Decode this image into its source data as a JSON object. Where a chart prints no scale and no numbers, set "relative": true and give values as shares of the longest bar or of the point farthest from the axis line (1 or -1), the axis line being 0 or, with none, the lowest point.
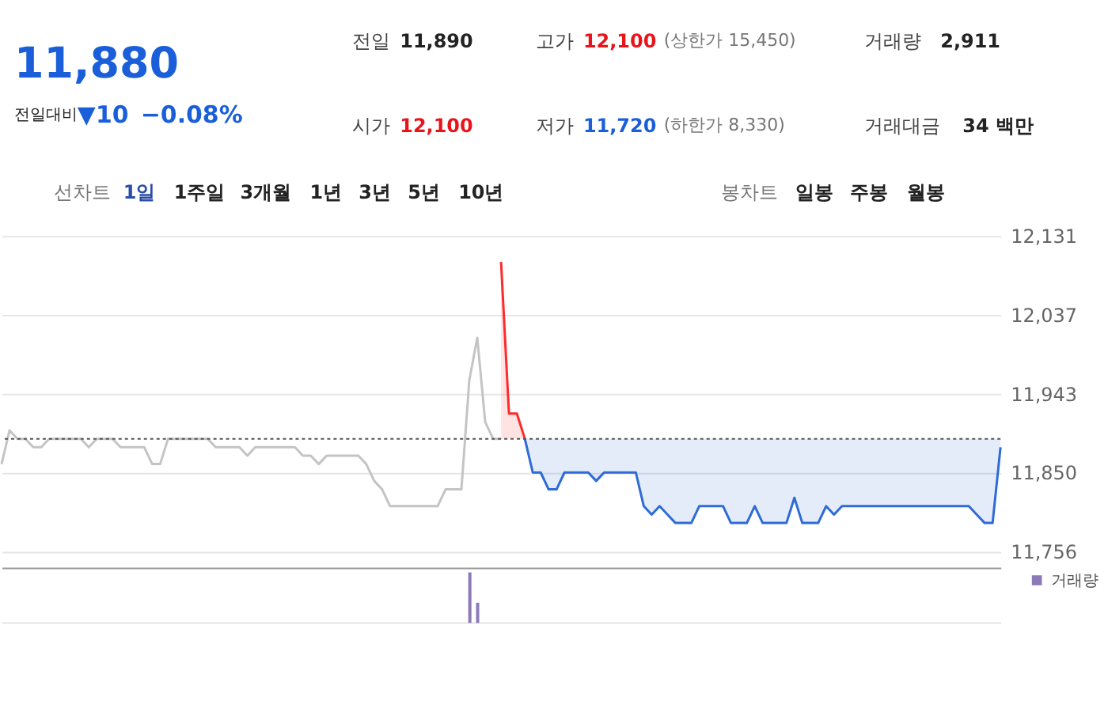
{
  "chart_data": [
    {
      "type": "other",
      "annotations": [
        "11,880",
        "전일대비",
        "▼10",
        "−0.08%",
        "전일",
        "11,890",
        "고가",
        "12,100",
        "(상한가 15,450)",
        "거래량",
        "2,911",
        "시가",
        "12,100",
        "저가",
        "11,720",
        "(하한가 8,330)",
        "거래대금",
        "34 백만",
        "선차트",
        "1일",
        "1주일",
        "3개월",
        "1년",
        "3년",
        "5년",
        "10년",
        "봉차트",
        "일봉",
        "주봉",
        "월봉"
      ]
    },
    {
      "type": "line",
      "categories": [
        null,
        null,
        null,
        null,
        null,
        null,
        null,
        null,
        null,
        null,
        null,
        null,
        null,
        null,
        null,
        null,
        null,
        null,
        null,
        null,
        null,
        null,
        null,
        null,
        null,
        null,
        null,
        null,
        null,
        null,
        null,
        null,
        null,
        null,
        null,
        null,
        null,
        null,
        null,
        null,
        null,
        null,
        null,
        null,
        null,
        null,
        null,
        null,
        null,
        null,
        null,
        null,
        null,
        null,
        null,
        null,
        null,
        null,
        null,
        null,
        null,
        null,
        null,
        null,
        null,
        null,
        null,
        null,
        null,
        null,
        null,
        null,
        null,
        null,
        null,
        null,
        null,
        null,
        null,
        null,
        null,
        null,
        null,
        null,
        null,
        null,
        null,
        null,
        null,
        null,
        null,
        null,
        null,
        null,
        null,
        null,
        null,
        null,
        null,
        null,
        null,
        null,
        null,
        null,
        null,
        null,
        null,
        null,
        null,
        null,
        null,
        null,
        null,
        null,
        null,
        null,
        null,
        null,
        null,
        null,
        null,
        null,
        null,
        null,
        null,
        null,
        null
      ],
      "series": [
        {
          "color": "#c4c4c4",
          "values": [
            11860,
            11900,
            11890,
            11890,
            11880,
            11880,
            11890,
            11890,
            11890,
            11890,
            11890,
            11880,
            11890,
            11890,
            11890,
            11880,
            11880,
            11880,
            11880,
            11860,
            11860,
            11890,
            11890,
            11890,
            11890,
            11890,
            11890,
            11880,
            11880,
            11880,
            11880,
            11870,
            11880,
            11880,
            11880,
            11880,
            11880,
            11880,
            11870,
            11870,
            11860,
            11870,
            11870,
            11870,
            11870,
            11870,
            11860,
            11840,
            11830,
            11810,
            11810,
            11810,
            11810,
            11810,
            11810,
            11810,
            11830,
            11830,
            11830,
            11960,
            12010,
            11910,
            11890,
            11890,
            null,
            null,
            null,
            null,
            null,
            null,
            null,
            null,
            null,
            null,
            null,
            null,
            null,
            null,
            null,
            null,
            null,
            null,
            null,
            null,
            null,
            null,
            null,
            null,
            null,
            null,
            null,
            null,
            null,
            null,
            null,
            null,
            null,
            null,
            null,
            null,
            null,
            null,
            null,
            null,
            null,
            null,
            null,
            null,
            null,
            null,
            null,
            null,
            null,
            null,
            null,
            null,
            null,
            null,
            null,
            null,
            null,
            null,
            null,
            null,
            null,
            null,
            null
          ]
        },
        {
          "color": "#ff2a2a",
          "values": [
            null,
            null,
            null,
            null,
            null,
            null,
            null,
            null,
            null,
            null,
            null,
            null,
            null,
            null,
            null,
            null,
            null,
            null,
            null,
            null,
            null,
            null,
            null,
            null,
            null,
            null,
            null,
            null,
            null,
            null,
            null,
            null,
            null,
            null,
            null,
            null,
            null,
            null,
            null,
            null,
            null,
            null,
            null,
            null,
            null,
            null,
            null,
            null,
            null,
            null,
            null,
            null,
            null,
            null,
            null,
            null,
            null,
            null,
            null,
            null,
            null,
            null,
            null,
            12100,
            11920,
            11920,
            11890,
            null,
            null,
            null,
            null,
            null,
            null,
            null,
            null,
            null,
            null,
            null,
            null,
            null,
            null,
            null,
            null,
            null,
            null,
            null,
            null,
            null,
            null,
            null,
            null,
            null,
            null,
            null,
            null,
            null,
            null,
            null,
            null,
            null,
            null,
            null,
            null,
            null,
            null,
            null,
            null,
            null,
            null,
            null,
            null,
            null,
            null,
            null,
            null,
            null,
            null,
            null,
            null,
            null,
            null,
            null,
            null,
            null,
            null,
            null,
            null
          ],
          "lower": [
            null,
            null,
            null,
            null,
            null,
            null,
            null,
            null,
            null,
            null,
            null,
            null,
            null,
            null,
            null,
            null,
            null,
            null,
            null,
            null,
            null,
            null,
            null,
            null,
            null,
            null,
            null,
            null,
            null,
            null,
            null,
            null,
            null,
            null,
            null,
            null,
            null,
            null,
            null,
            null,
            null,
            null,
            null,
            null,
            null,
            null,
            null,
            null,
            null,
            null,
            null,
            null,
            null,
            null,
            null,
            null,
            null,
            null,
            null,
            null,
            null,
            null,
            null,
            11890,
            11890,
            11890,
            11890,
            null,
            null,
            null,
            null,
            null,
            null,
            null,
            null,
            null,
            null,
            null,
            null,
            null,
            null,
            null,
            null,
            null,
            null,
            null,
            null,
            null,
            null,
            null,
            null,
            null,
            null,
            null,
            null,
            null,
            null,
            null,
            null,
            null,
            null,
            null,
            null,
            null,
            null,
            null,
            null,
            null,
            null,
            null,
            null,
            null,
            null,
            null,
            null,
            null,
            null,
            null,
            null,
            null,
            null,
            null,
            null,
            null,
            null,
            null,
            null
          ],
          "upper": [
            null,
            null,
            null,
            null,
            null,
            null,
            null,
            null,
            null,
            null,
            null,
            null,
            null,
            null,
            null,
            null,
            null,
            null,
            null,
            null,
            null,
            null,
            null,
            null,
            null,
            null,
            null,
            null,
            null,
            null,
            null,
            null,
            null,
            null,
            null,
            null,
            null,
            null,
            null,
            null,
            null,
            null,
            null,
            null,
            null,
            null,
            null,
            null,
            null,
            null,
            null,
            null,
            null,
            null,
            null,
            null,
            null,
            null,
            null,
            null,
            null,
            null,
            null,
            12100,
            11920,
            11920,
            11890,
            null,
            null,
            null,
            null,
            null,
            null,
            null,
            null,
            null,
            null,
            null,
            null,
            null,
            null,
            null,
            null,
            null,
            null,
            null,
            null,
            null,
            null,
            null,
            null,
            null,
            null,
            null,
            null,
            null,
            null,
            null,
            null,
            null,
            null,
            null,
            null,
            null,
            null,
            null,
            null,
            null,
            null,
            null,
            null,
            null,
            null,
            null,
            null,
            null,
            null,
            null,
            null,
            null,
            null,
            null,
            null,
            null,
            null,
            null,
            null
          ]
        },
        {
          "color": "#2e6bd6",
          "lower": [
            null,
            null,
            null,
            null,
            null,
            null,
            null,
            null,
            null,
            null,
            null,
            null,
            null,
            null,
            null,
            null,
            null,
            null,
            null,
            null,
            null,
            null,
            null,
            null,
            null,
            null,
            null,
            null,
            null,
            null,
            null,
            null,
            null,
            null,
            null,
            null,
            null,
            null,
            null,
            null,
            null,
            null,
            null,
            null,
            null,
            null,
            null,
            null,
            null,
            null,
            null,
            null,
            null,
            null,
            null,
            null,
            null,
            null,
            null,
            null,
            null,
            null,
            null,
            null,
            null,
            null,
            11890,
            11850,
            11850,
            11830,
            11830,
            11850,
            11850,
            11850,
            11850,
            11840,
            11850,
            11850,
            11850,
            11850,
            11850,
            11810,
            11800,
            11810,
            11800,
            11790,
            11790,
            11790,
            11810,
            11810,
            11810,
            11810,
            11790,
            11790,
            11790,
            11810,
            11790,
            11790,
            11790,
            11790,
            11820,
            11790,
            11790,
            11790,
            11810,
            11800,
            11810,
            11810,
            11810,
            11810,
            11810,
            11810,
            11810,
            11810,
            11810,
            11810,
            11810,
            11810,
            11810,
            11810,
            11810,
            11810,
            11810,
            11800,
            11790,
            11790,
            11880
          ],
          "upper": [
            null,
            null,
            null,
            null,
            null,
            null,
            null,
            null,
            null,
            null,
            null,
            null,
            null,
            null,
            null,
            null,
            null,
            null,
            null,
            null,
            null,
            null,
            null,
            null,
            null,
            null,
            null,
            null,
            null,
            null,
            null,
            null,
            null,
            null,
            null,
            null,
            null,
            null,
            null,
            null,
            null,
            null,
            null,
            null,
            null,
            null,
            null,
            null,
            null,
            null,
            null,
            null,
            null,
            null,
            null,
            null,
            null,
            null,
            null,
            null,
            null,
            null,
            null,
            null,
            null,
            null,
            11890,
            11890,
            11890,
            11890,
            11890,
            11890,
            11890,
            11890,
            11890,
            11890,
            11890,
            11890,
            11890,
            11890,
            11890,
            11890,
            11890,
            11890,
            11890,
            11890,
            11890,
            11890,
            11890,
            11890,
            11890,
            11890,
            11890,
            11890,
            11890,
            11890,
            11890,
            11890,
            11890,
            11890,
            11890,
            11890,
            11890,
            11890,
            11890,
            11890,
            11890,
            11890,
            11890,
            11890,
            11890,
            11890,
            11890,
            11890,
            11890,
            11890,
            11890,
            11890,
            11890,
            11890,
            11890,
            11890,
            11890,
            11890,
            11890,
            11890,
            11890
          ],
          "values": [
            null,
            null,
            null,
            null,
            null,
            null,
            null,
            null,
            null,
            null,
            null,
            null,
            null,
            null,
            null,
            null,
            null,
            null,
            null,
            null,
            null,
            null,
            null,
            null,
            null,
            null,
            null,
            null,
            null,
            null,
            null,
            null,
            null,
            null,
            null,
            null,
            null,
            null,
            null,
            null,
            null,
            null,
            null,
            null,
            null,
            null,
            null,
            null,
            null,
            null,
            null,
            null,
            null,
            null,
            null,
            null,
            null,
            null,
            null,
            null,
            null,
            null,
            null,
            null,
            null,
            null,
            11890,
            11850,
            11850,
            11830,
            11830,
            11850,
            11850,
            11850,
            11850,
            11840,
            11850,
            11850,
            11850,
            11850,
            11850,
            11810,
            11800,
            11810,
            11800,
            11790,
            11790,
            11790,
            11810,
            11810,
            11810,
            11810,
            11790,
            11790,
            11790,
            11810,
            11790,
            11790,
            11790,
            11790,
            11820,
            11790,
            11790,
            11790,
            11810,
            11800,
            11810,
            11810,
            11810,
            11810,
            11810,
            11810,
            11810,
            11810,
            11810,
            11810,
            11810,
            11810,
            11810,
            11810,
            11810,
            11810,
            11810,
            11800,
            11790,
            11790,
            11880
          ]
        }
      ],
      "ylim": [
        11737,
        12131
      ],
      "yticks": [
        {
          "value": 11756,
          "label": "11,756"
        },
        {
          "value": 11850,
          "label": "11,850"
        },
        {
          "value": 11943,
          "label": "11,943"
        },
        {
          "value": 12037,
          "label": "12,037"
        },
        {
          "value": 12131,
          "label": "12,131"
        }
      ],
      "ref_lines": [
        {
          "axis": "y",
          "value": 11890,
          "line_style": "dotted",
          "color": "#555555"
        }
      ],
      "grid": "y",
      "tick_labels": "y"
    },
    {
      "type": "bar",
      "relative": true,
      "categories": [
        null,
        null,
        null,
        null,
        null,
        null,
        null,
        null,
        null,
        null,
        null,
        null,
        null,
        null,
        null,
        null,
        null,
        null,
        null,
        null,
        null,
        null,
        null,
        null,
        null,
        null,
        null,
        null,
        null,
        null,
        null,
        null,
        null,
        null,
        null,
        null,
        null,
        null,
        null,
        null,
        null,
        null,
        null,
        null,
        null,
        null,
        null,
        null,
        null,
        null,
        null,
        null,
        null,
        null,
        null,
        null,
        null,
        null,
        null,
        null,
        null,
        null,
        null,
        null,
        null,
        null,
        null,
        null,
        null,
        null,
        null,
        null,
        null,
        null,
        null,
        null,
        null,
        null,
        null,
        null,
        null,
        null,
        null,
        null,
        null,
        null,
        null,
        null,
        null,
        null,
        null,
        null,
        null,
        null,
        null,
        null,
        null,
        null,
        null,
        null,
        null,
        null,
        null,
        null,
        null,
        null,
        null,
        null,
        null,
        null,
        null,
        null,
        null,
        null,
        null,
        null,
        null,
        null,
        null,
        null,
        null,
        null,
        null,
        null,
        null,
        null,
        null
      ],
      "series": [
        {
          "name": "거래량",
          "color": "#8c7ab8",
          "values": [
            null,
            null,
            null,
            null,
            null,
            null,
            null,
            null,
            null,
            null,
            null,
            null,
            null,
            null,
            null,
            null,
            null,
            null,
            null,
            null,
            null,
            null,
            null,
            null,
            null,
            null,
            null,
            null,
            null,
            null,
            null,
            null,
            null,
            null,
            null,
            null,
            null,
            null,
            null,
            null,
            null,
            null,
            null,
            null,
            null,
            null,
            null,
            null,
            null,
            null,
            null,
            null,
            null,
            null,
            null,
            null,
            null,
            null,
            null,
            1,
            0.4,
            null,
            null,
            null,
            null,
            null,
            null,
            null,
            null,
            null,
            null,
            null,
            null,
            null,
            null,
            null,
            null,
            null,
            null,
            null,
            null,
            null,
            null,
            null,
            null,
            null,
            null,
            null,
            null,
            null,
            null,
            null,
            null,
            null,
            null,
            null,
            null,
            null,
            null,
            null,
            null,
            null,
            null,
            null,
            null,
            null,
            null,
            null,
            null,
            null,
            null,
            null,
            null,
            null,
            null,
            null,
            null,
            null,
            null,
            null,
            null,
            null,
            null,
            null,
            null,
            null,
            null
          ]
        }
      ],
      "legend": "right",
      "tick_labels": false
    }
  ]
}
